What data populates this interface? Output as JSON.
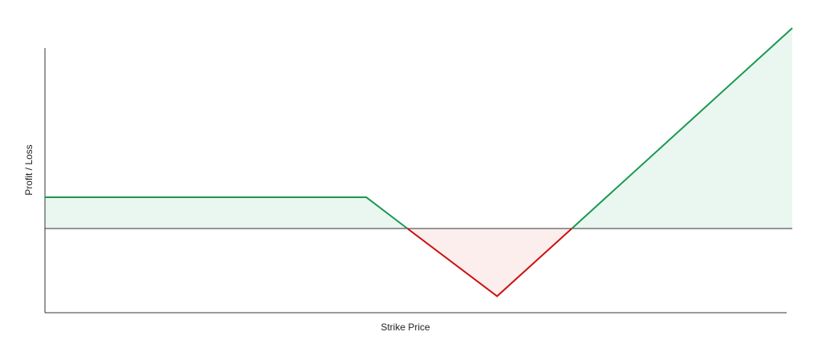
{
  "chart_data": {
    "type": "area",
    "title": "",
    "xlabel": "Strike Price",
    "ylabel": "Profit / Loss",
    "grid": false,
    "xlim": [
      0,
      100
    ],
    "ylim": [
      -3.0,
      7.5
    ],
    "baseline": 0,
    "series": [
      {
        "points": [
          {
            "x": 0,
            "y": 1.2
          },
          {
            "x": 43,
            "y": 1.2
          },
          {
            "x": 48.5,
            "y": 0
          },
          {
            "x": 60.5,
            "y": -2.6
          },
          {
            "x": 70.5,
            "y": 0
          },
          {
            "x": 100,
            "y": 7.7
          }
        ]
      }
    ],
    "colors": {
      "profit_line": "#1a9850",
      "profit_fill": "#eaf6f0",
      "loss_line": "#cc1111",
      "loss_fill": "#fdeeee",
      "axis": "#333333"
    }
  }
}
